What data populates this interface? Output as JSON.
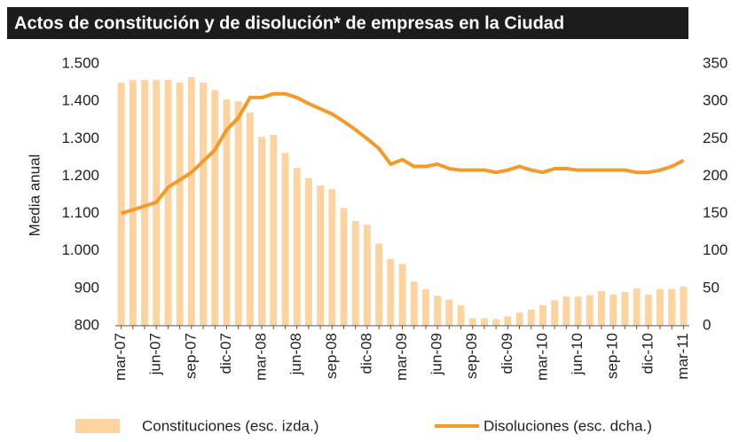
{
  "chart_data": {
    "type": "bar_line",
    "title": "Actos de constitución y de disolución* de empresas en la Ciudad",
    "y_label": "Media anual",
    "categories": [
      "mar-07",
      null,
      null,
      "jun-07",
      null,
      null,
      "sep-07",
      null,
      null,
      "dic-07",
      null,
      null,
      "mar-08",
      null,
      null,
      "jun-08",
      null,
      null,
      "sep-08",
      null,
      null,
      "dic-08",
      null,
      null,
      "mar-09",
      null,
      null,
      "jun-09",
      null,
      null,
      "sep-09",
      null,
      null,
      "dic-09",
      null,
      null,
      "mar-10",
      null,
      null,
      "jun-10",
      null,
      null,
      "sep-10",
      null,
      null,
      "dic-10",
      null,
      null,
      "mar-11"
    ],
    "series": [
      {
        "name": "Constituciones (esc. izda.)",
        "type": "bar",
        "color": "#fcd3a1",
        "values": [
          1450,
          1457,
          1457,
          1457,
          1457,
          1450,
          1465,
          1450,
          1430,
          1405,
          1400,
          1370,
          1305,
          1310,
          1262,
          1222,
          1195,
          1175,
          1165,
          1115,
          1080,
          1070,
          1020,
          978,
          965,
          918,
          897,
          880,
          870,
          855,
          820,
          820,
          818,
          825,
          835,
          843,
          855,
          868,
          878,
          878,
          882,
          893,
          883,
          890,
          900,
          883,
          898,
          898,
          905
        ]
      },
      {
        "name": "Disoluciones (esc. dcha.)",
        "type": "line",
        "axis": "y2",
        "color": "#f39a2b",
        "values": [
          150,
          155,
          160,
          165,
          185,
          195,
          205,
          220,
          235,
          262,
          278,
          305,
          305,
          310,
          310,
          305,
          297,
          290,
          283,
          273,
          262,
          250,
          237,
          216,
          222,
          213,
          213,
          216,
          210,
          208,
          208,
          208,
          205,
          208,
          213,
          208,
          205,
          210,
          210,
          208,
          208,
          208,
          208,
          208,
          205,
          205,
          208,
          213,
          221
        ]
      }
    ],
    "ylim": [
      800,
      1500
    ],
    "yticks": [
      {
        "value": 800,
        "label": "800"
      },
      {
        "value": 900,
        "label": "900"
      },
      {
        "value": 1000,
        "label": "1.000"
      },
      {
        "value": 1100,
        "label": "1.100"
      },
      {
        "value": 1200,
        "label": "1.200"
      },
      {
        "value": 1300,
        "label": "1.300"
      },
      {
        "value": 1400,
        "label": "1.400"
      },
      {
        "value": 1500,
        "label": "1.500"
      }
    ],
    "y2lim": [
      0,
      350
    ],
    "y2ticks": [
      0,
      50,
      100,
      150,
      200,
      250,
      300,
      350
    ]
  }
}
